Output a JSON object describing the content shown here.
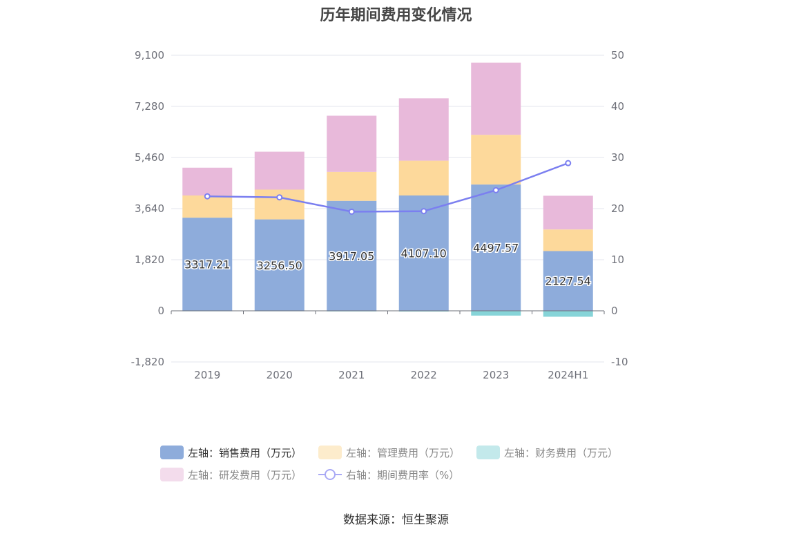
{
  "chart_data": {
    "type": "bar",
    "title": "历年期间费用变化情况",
    "categories": [
      "2019",
      "2020",
      "2021",
      "2022",
      "2023",
      "2024H1"
    ],
    "stacked": true,
    "left_axis": {
      "ticks": [
        "9,100",
        "7,280",
        "5,460",
        "3,640",
        "1,820",
        "0",
        "-1,820"
      ],
      "range": [
        -1820,
        9100
      ]
    },
    "right_axis": {
      "ticks": [
        "50",
        "40",
        "30",
        "20",
        "10",
        "0",
        "-10"
      ],
      "range": [
        -10,
        50
      ]
    },
    "series": [
      {
        "name": "左轴：销售费用（万元）",
        "axis": "left",
        "color": "#8eacdb",
        "values": [
          3317.21,
          3256.5,
          3917.05,
          4107.1,
          4497.57,
          2127.54
        ],
        "labels": [
          "3317.21",
          "3256.50",
          "3917.05",
          "4107.10",
          "4497.57",
          "2127.54"
        ]
      },
      {
        "name": "左轴：管理费用（万元）",
        "axis": "left",
        "color": "#fdd99b",
        "values": [
          790,
          1060,
          1030,
          1240,
          1770,
          770
        ]
      },
      {
        "name": "左轴：财务费用（万元）",
        "axis": "left",
        "color": "#86d4d8",
        "values": [
          -15,
          -15,
          -20,
          -25,
          -170,
          -210
        ]
      },
      {
        "name": "左轴：研发费用（万元）",
        "axis": "left",
        "color": "#e8b9da",
        "values": [
          990,
          1350,
          2000,
          2220,
          2570,
          1200
        ]
      },
      {
        "name": "右轴：期间费用率（%）",
        "axis": "right",
        "type": "line",
        "color": "#7b7ff0",
        "values": [
          22.4,
          22.2,
          19.4,
          19.5,
          23.6,
          28.9
        ]
      }
    ],
    "legend_position": "bottom",
    "grid": true
  },
  "source": "数据来源：恒生聚源"
}
